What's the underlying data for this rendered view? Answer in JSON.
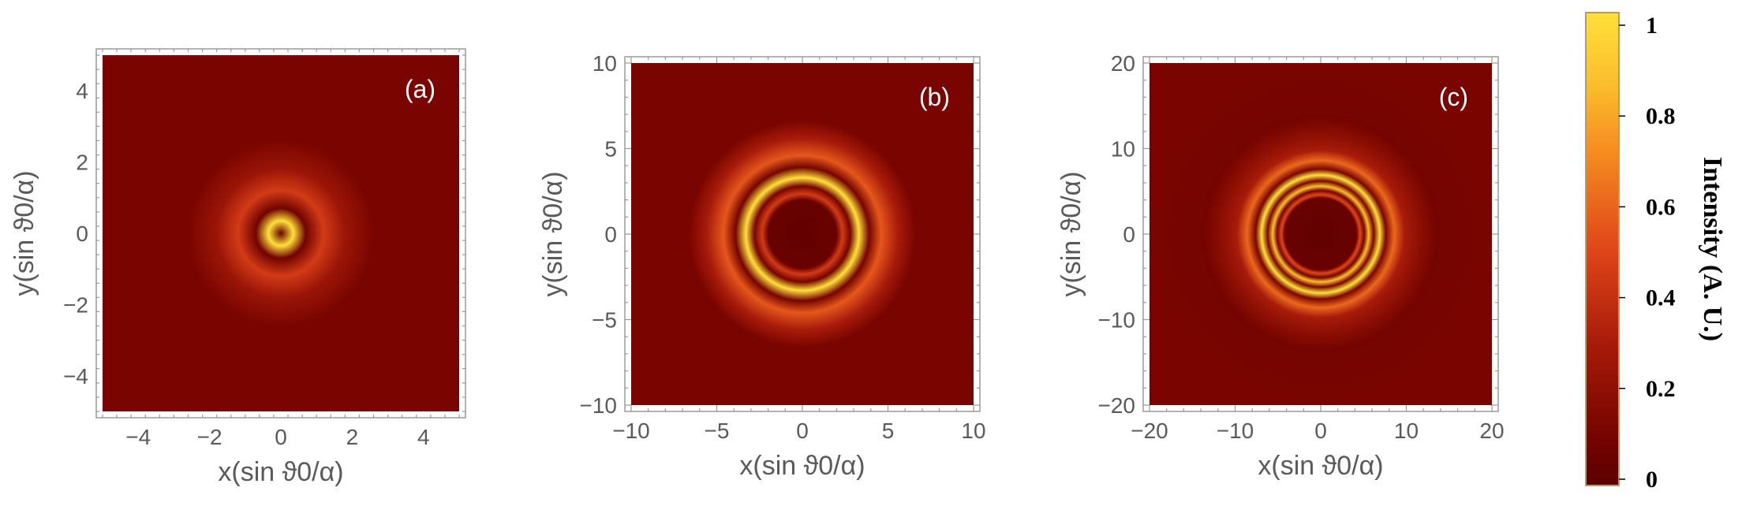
{
  "chart_data": [
    {
      "type": "heatmap",
      "panel_label": "(a)",
      "xlabel": "x(sin ϑ0/α)",
      "ylabel": "y(sin ϑ0/α)",
      "xlim": [
        -5,
        5
      ],
      "ylim": [
        -5,
        5
      ],
      "xticks": [
        -4,
        -2,
        0,
        2,
        4
      ],
      "yticks": [
        -4,
        -2,
        0,
        2,
        4
      ],
      "xtick_labels": [
        "−4",
        "−2",
        "0",
        "2",
        "4"
      ],
      "ytick_labels": [
        "−4",
        "−2",
        "0",
        "2",
        "4"
      ],
      "intensity_profile": {
        "description_radius_unit": "data units",
        "rings": [
          {
            "radius": 0.0,
            "intensity": 0.05
          },
          {
            "radius": 0.35,
            "intensity": 1.0
          },
          {
            "radius": 0.7,
            "intensity": 0.08
          },
          {
            "radius": 1.2,
            "intensity": 0.45
          },
          {
            "radius": 1.8,
            "intensity": 0.25
          },
          {
            "radius": 2.6,
            "intensity": 0.12
          }
        ]
      }
    },
    {
      "type": "heatmap",
      "panel_label": "(b)",
      "xlabel": "x(sin ϑ0/α)",
      "ylabel": "y(sin ϑ0/α)",
      "xlim": [
        -10,
        10
      ],
      "ylim": [
        -10,
        10
      ],
      "xticks": [
        -10,
        -5,
        0,
        5,
        10
      ],
      "yticks": [
        -10,
        -5,
        0,
        5,
        10
      ],
      "xtick_labels": [
        "−10",
        "−5",
        "0",
        "5",
        "10"
      ],
      "ytick_labels": [
        "−10",
        "−5",
        "0",
        "5",
        "10"
      ],
      "intensity_profile": {
        "description_radius_unit": "data units",
        "rings": [
          {
            "radius": 0.0,
            "intensity": 0.02
          },
          {
            "radius": 2.0,
            "intensity": 0.05
          },
          {
            "radius": 2.35,
            "intensity": 0.45
          },
          {
            "radius": 2.8,
            "intensity": 0.1
          },
          {
            "radius": 3.3,
            "intensity": 1.0
          },
          {
            "radius": 3.9,
            "intensity": 0.1
          },
          {
            "radius": 4.6,
            "intensity": 0.55
          },
          {
            "radius": 5.6,
            "intensity": 0.3
          },
          {
            "radius": 6.6,
            "intensity": 0.12
          }
        ]
      }
    },
    {
      "type": "heatmap",
      "panel_label": "(c)",
      "xlabel": "x(sin ϑ0/α)",
      "ylabel": "y(sin ϑ0/α)",
      "xlim": [
        -20,
        20
      ],
      "ylim": [
        -20,
        20
      ],
      "xticks": [
        -20,
        -10,
        0,
        10,
        20
      ],
      "yticks": [
        -20,
        -10,
        0,
        10,
        20
      ],
      "xtick_labels": [
        "−20",
        "−10",
        "0",
        "10",
        "20"
      ],
      "ytick_labels": [
        "−20",
        "−10",
        "0",
        "10",
        "20"
      ],
      "intensity_profile": {
        "description_radius_unit": "data units",
        "rings": [
          {
            "radius": 0.0,
            "intensity": 0.02
          },
          {
            "radius": 4.2,
            "intensity": 0.05
          },
          {
            "radius": 4.6,
            "intensity": 0.5
          },
          {
            "radius": 5.1,
            "intensity": 0.1
          },
          {
            "radius": 5.6,
            "intensity": 0.85
          },
          {
            "radius": 6.2,
            "intensity": 0.12
          },
          {
            "radius": 6.9,
            "intensity": 1.0
          },
          {
            "radius": 7.6,
            "intensity": 0.12
          },
          {
            "radius": 8.6,
            "intensity": 0.6
          },
          {
            "radius": 9.8,
            "intensity": 0.3
          },
          {
            "radius": 11.5,
            "intensity": 0.2
          },
          {
            "radius": 13.5,
            "intensity": 0.1
          }
        ]
      }
    }
  ],
  "colorbar": {
    "label": "Intensity (A. U.)",
    "range": [
      0,
      1
    ],
    "ticks": [
      0,
      0.2,
      0.4,
      0.6,
      0.8,
      1
    ],
    "tick_labels": [
      "0",
      "0.2",
      "0.4",
      "0.6",
      "0.8",
      "1"
    ],
    "colors": {
      "low": "#5c0000",
      "mid_low": "#a81b0a",
      "mid": "#e0461a",
      "mid_high": "#f58a1f",
      "high": "#ffe03a"
    }
  },
  "colors": {
    "background_field": "#7a0500",
    "frame": "#9a9a9a",
    "tick_text": "#5a5a5a",
    "panel_tag": "#ffffff"
  }
}
